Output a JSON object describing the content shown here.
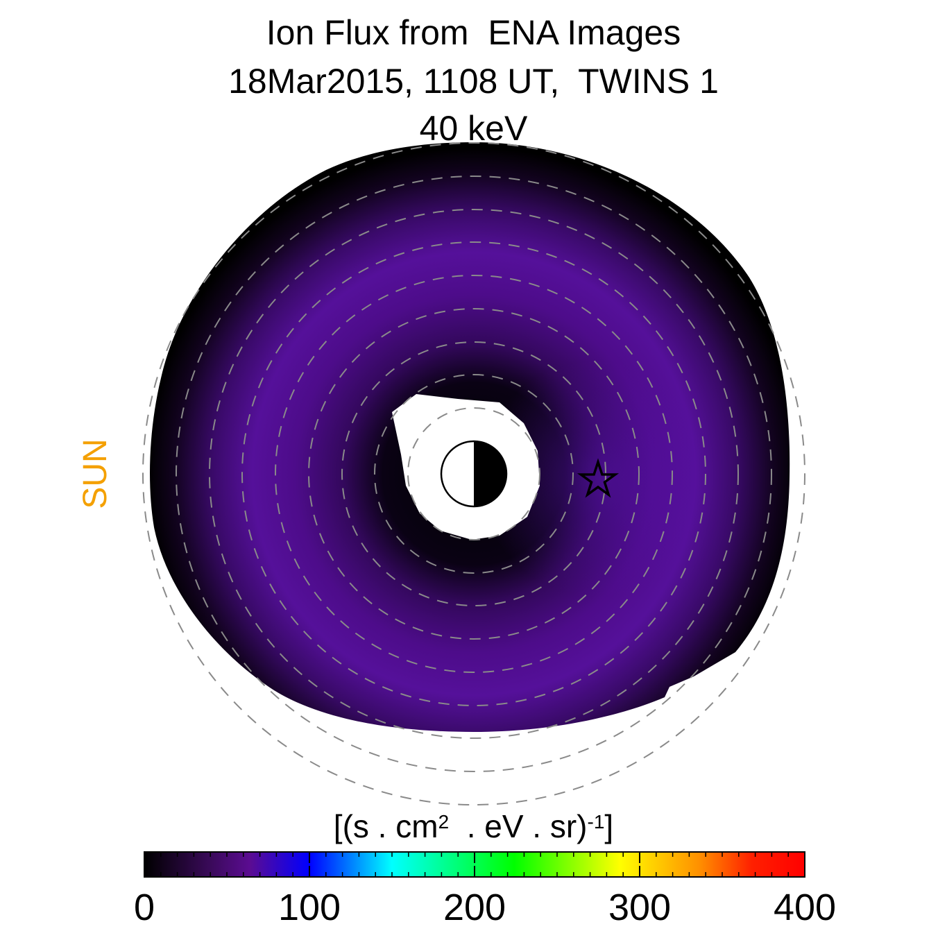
{
  "chart_data": {
    "type": "heatmap",
    "title_lines": [
      "Ion Flux from  ENA Images",
      "18Mar2015, 1108 UT,  TWINS 1",
      "40 keV"
    ],
    "sun_label": "SUN",
    "colorbar": {
      "unit_parts": [
        "[(s . cm",
        "2",
        "  . eV . sr)",
        "-1",
        "]"
      ],
      "range": [
        0,
        400
      ],
      "ticks": [
        0,
        100,
        200,
        300,
        400
      ],
      "tick_labels": [
        "0",
        "100",
        "200",
        "300",
        "400"
      ],
      "colors": [
        "#000000",
        "#5b0c92",
        "#0000ff",
        "#00ffff",
        "#00ff00",
        "#ffff00",
        "#ff8000",
        "#ff0000"
      ]
    },
    "flux_map": {
      "description": "ion flux distribution in equatorial plane, Sun to the left",
      "ring_peak_flux": 55,
      "max_flux_approx": 60
    },
    "colors": {
      "sun_label": "#f4a000",
      "grid_circles": "#8a8a8a"
    },
    "icons": [
      "earth-icon",
      "satellite-star-icon"
    ]
  }
}
